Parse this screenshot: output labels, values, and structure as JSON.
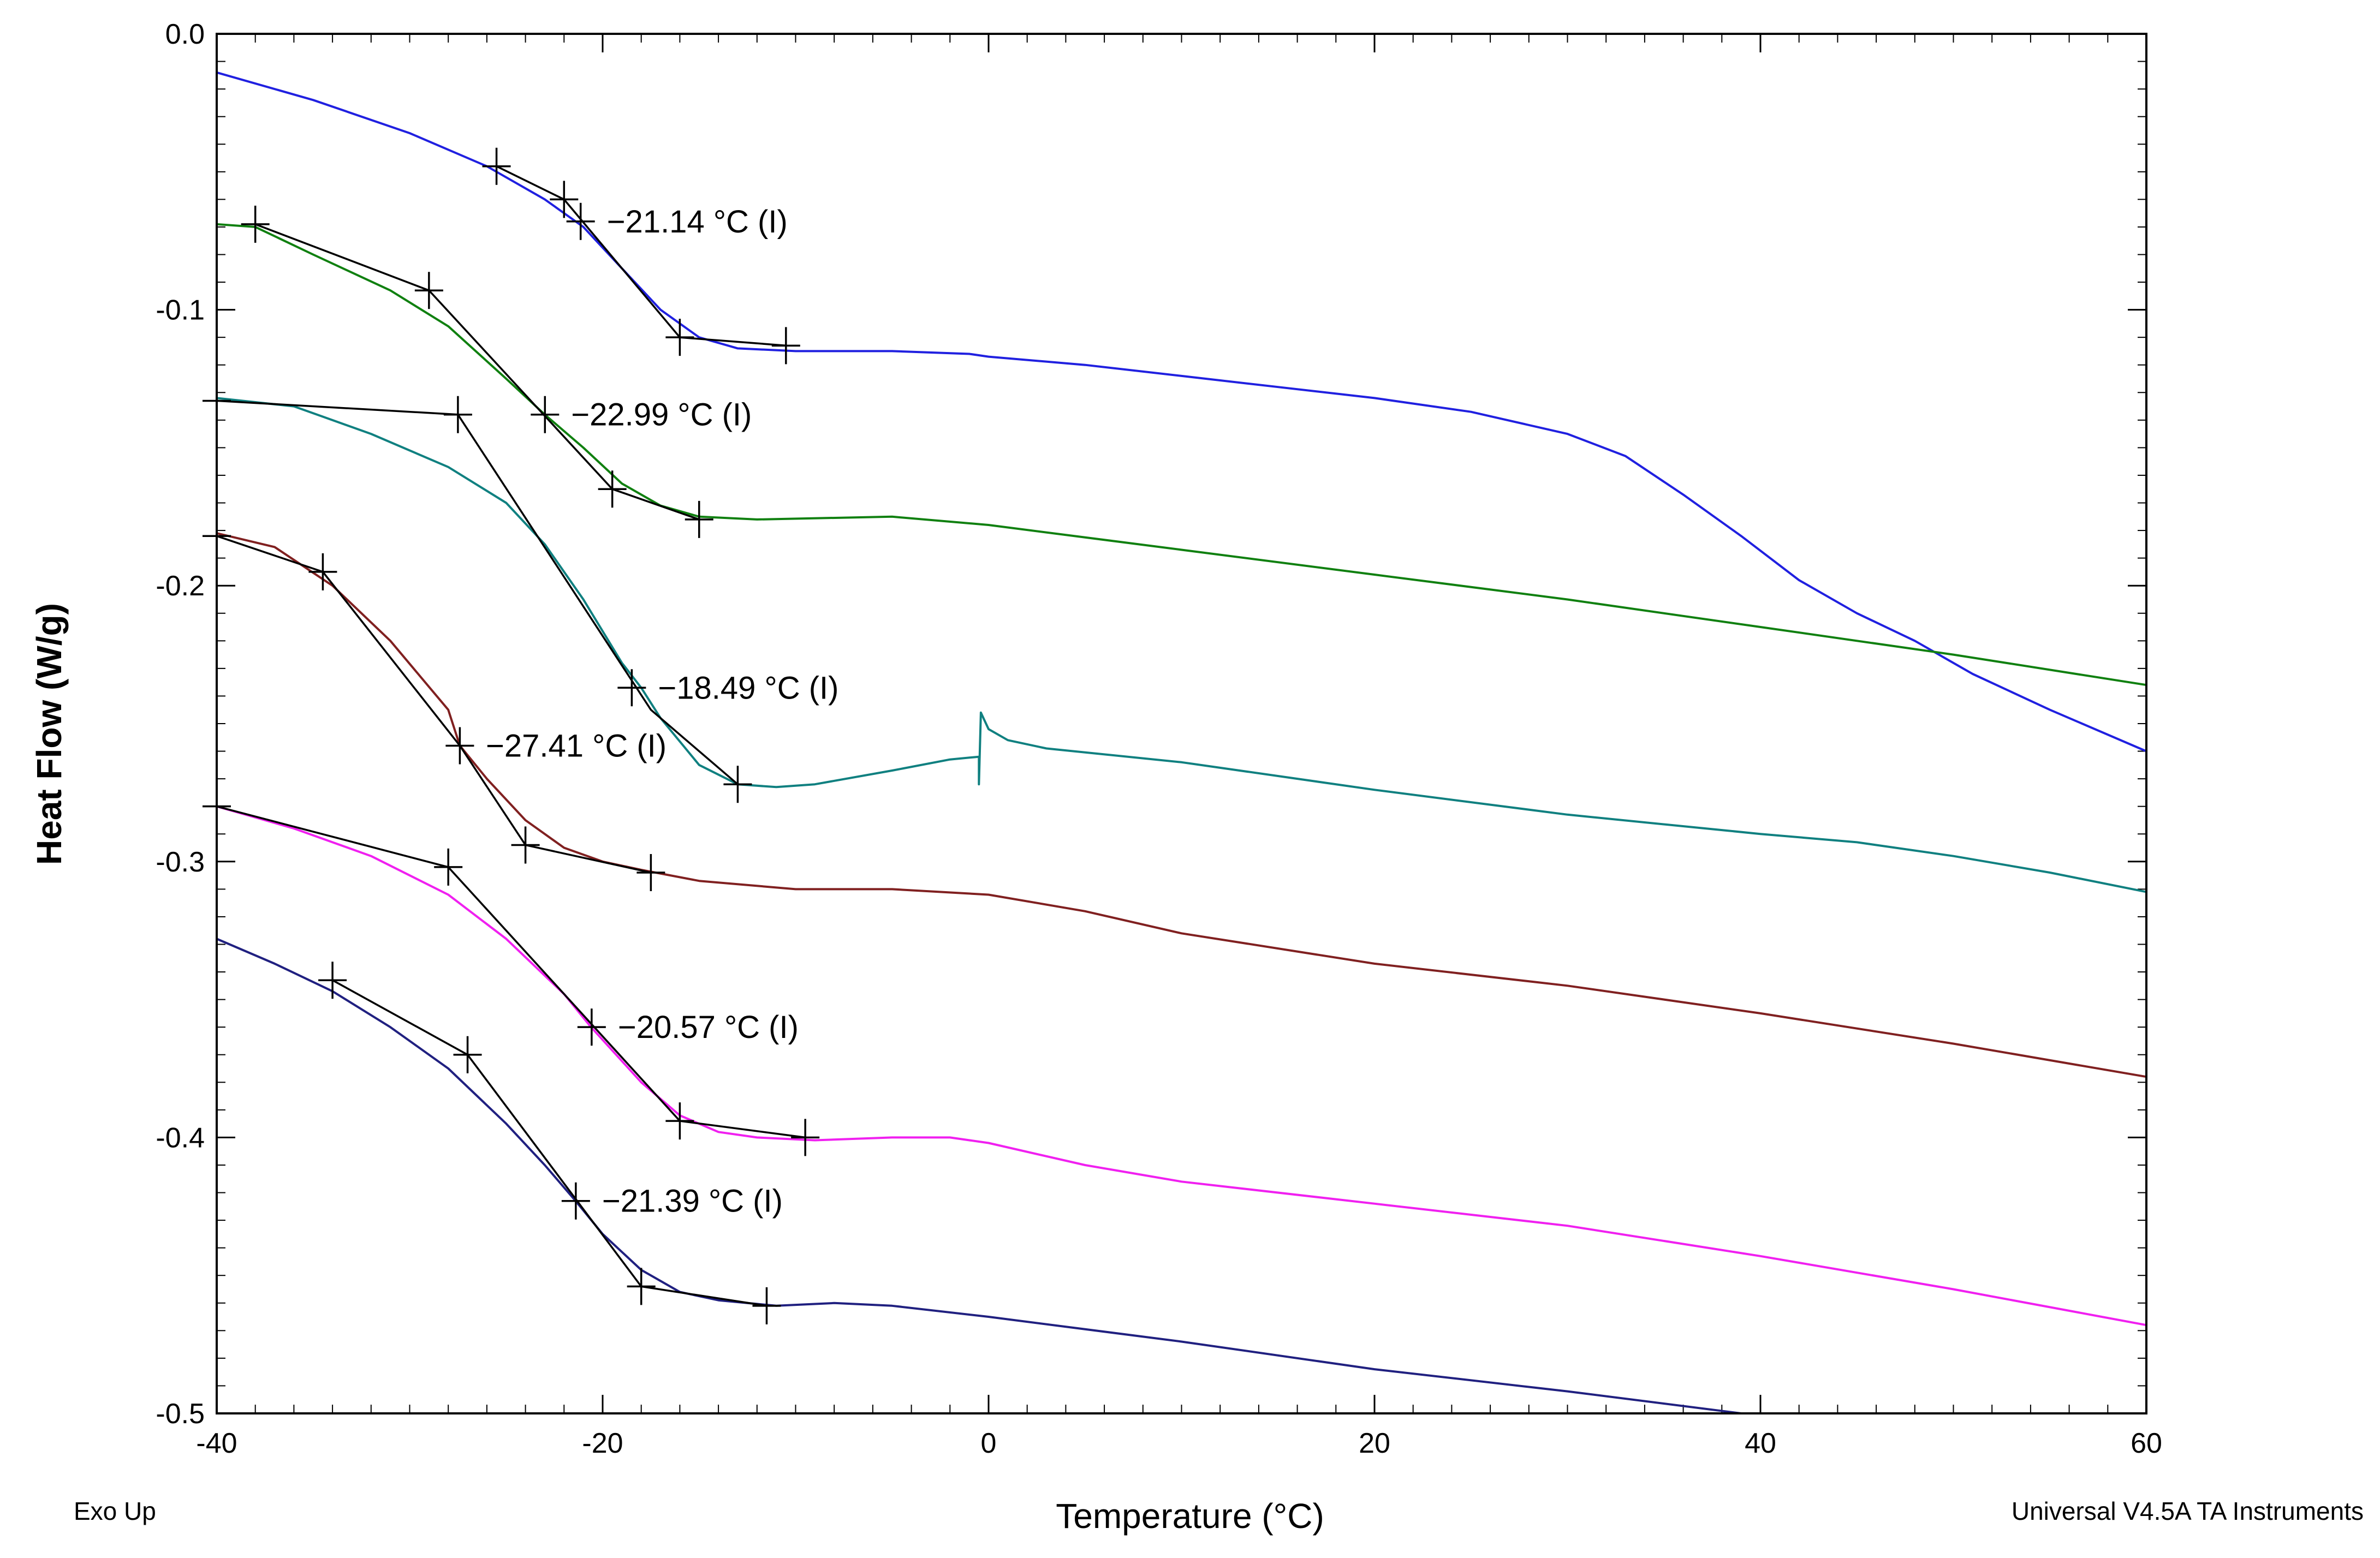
{
  "chart_data": {
    "type": "line",
    "title": "",
    "xlabel": "Temperature (°C)",
    "ylabel": "Heat Flow (W/g)",
    "xlim": [
      -40,
      60
    ],
    "ylim": [
      -0.5,
      0.0
    ],
    "x_ticks": [
      -40,
      -20,
      0,
      20,
      40,
      60
    ],
    "x_tick_labels": [
      "-40",
      "-20",
      "0",
      "20",
      "40",
      "60"
    ],
    "y_ticks": [
      0.0,
      -0.1,
      -0.2,
      -0.3,
      -0.4,
      -0.5
    ],
    "y_tick_labels": [
      "0.0",
      "-0.1",
      "-0.2",
      "-0.3",
      "-0.4",
      "-0.5"
    ],
    "grid": false,
    "footer_left": "Exo Up",
    "footer_right": "Universal V4.5A TA Instruments",
    "series": [
      {
        "name": "curve-1",
        "color": "#2020e0",
        "points": [
          [
            -40,
            -0.014
          ],
          [
            -35,
            -0.024
          ],
          [
            -30,
            -0.036
          ],
          [
            -26,
            -0.048
          ],
          [
            -23,
            -0.06
          ],
          [
            -21,
            -0.07
          ],
          [
            -19,
            -0.085
          ],
          [
            -17,
            -0.1
          ],
          [
            -15,
            -0.11
          ],
          [
            -13,
            -0.114
          ],
          [
            -10,
            -0.115
          ],
          [
            -5,
            -0.115
          ],
          [
            -1,
            -0.116
          ],
          [
            0,
            -0.117
          ],
          [
            5,
            -0.12
          ],
          [
            10,
            -0.124
          ],
          [
            15,
            -0.128
          ],
          [
            20,
            -0.132
          ],
          [
            25,
            -0.137
          ],
          [
            30,
            -0.145
          ],
          [
            33,
            -0.153
          ],
          [
            36,
            -0.167
          ],
          [
            39,
            -0.182
          ],
          [
            42,
            -0.198
          ],
          [
            45,
            -0.21
          ],
          [
            48,
            -0.22
          ],
          [
            51,
            -0.232
          ],
          [
            55,
            -0.245
          ],
          [
            60,
            -0.26
          ]
        ]
      },
      {
        "name": "curve-2",
        "color": "#108010",
        "points": [
          [
            -40,
            -0.069
          ],
          [
            -38,
            -0.07
          ],
          [
            -35,
            -0.08
          ],
          [
            -31,
            -0.093
          ],
          [
            -28,
            -0.106
          ],
          [
            -25,
            -0.125
          ],
          [
            -23,
            -0.138
          ],
          [
            -21,
            -0.15
          ],
          [
            -19,
            -0.163
          ],
          [
            -17,
            -0.171
          ],
          [
            -15,
            -0.175
          ],
          [
            -12,
            -0.176
          ],
          [
            -5,
            -0.175
          ],
          [
            0,
            -0.178
          ],
          [
            10,
            -0.187
          ],
          [
            20,
            -0.196
          ],
          [
            30,
            -0.205
          ],
          [
            40,
            -0.215
          ],
          [
            50,
            -0.225
          ],
          [
            60,
            -0.236
          ]
        ]
      },
      {
        "name": "curve-3",
        "color": "#108080",
        "points": [
          [
            -40,
            -0.132
          ],
          [
            -36,
            -0.135
          ],
          [
            -32,
            -0.145
          ],
          [
            -28,
            -0.157
          ],
          [
            -25,
            -0.17
          ],
          [
            -23,
            -0.185
          ],
          [
            -21,
            -0.205
          ],
          [
            -19,
            -0.228
          ],
          [
            -18,
            -0.237
          ],
          [
            -17,
            -0.248
          ],
          [
            -15,
            -0.265
          ],
          [
            -13,
            -0.272
          ],
          [
            -11,
            -0.273
          ],
          [
            -9,
            -0.272
          ],
          [
            -5,
            -0.267
          ],
          [
            -2,
            -0.263
          ],
          [
            -0.5,
            -0.262
          ],
          [
            -0.5,
            -0.272
          ],
          [
            -0.4,
            -0.246
          ],
          [
            0,
            -0.252
          ],
          [
            1,
            -0.256
          ],
          [
            3,
            -0.259
          ],
          [
            10,
            -0.264
          ],
          [
            20,
            -0.274
          ],
          [
            30,
            -0.283
          ],
          [
            40,
            -0.29
          ],
          [
            45,
            -0.293
          ],
          [
            50,
            -0.298
          ],
          [
            55,
            -0.304
          ],
          [
            60,
            -0.311
          ]
        ]
      },
      {
        "name": "curve-4",
        "color": "#802020",
        "points": [
          [
            -40,
            -0.181
          ],
          [
            -37,
            -0.186
          ],
          [
            -34,
            -0.2
          ],
          [
            -31,
            -0.22
          ],
          [
            -28,
            -0.245
          ],
          [
            -27.4,
            -0.258
          ],
          [
            -26,
            -0.27
          ],
          [
            -24,
            -0.285
          ],
          [
            -22,
            -0.295
          ],
          [
            -20,
            -0.3
          ],
          [
            -18,
            -0.303
          ],
          [
            -15,
            -0.307
          ],
          [
            -10,
            -0.31
          ],
          [
            -5,
            -0.31
          ],
          [
            0,
            -0.312
          ],
          [
            5,
            -0.318
          ],
          [
            10,
            -0.326
          ],
          [
            20,
            -0.337
          ],
          [
            30,
            -0.345
          ],
          [
            40,
            -0.355
          ],
          [
            50,
            -0.366
          ],
          [
            60,
            -0.378
          ]
        ]
      },
      {
        "name": "curve-5",
        "color": "#f020f0",
        "points": [
          [
            -40,
            -0.28
          ],
          [
            -36,
            -0.288
          ],
          [
            -32,
            -0.298
          ],
          [
            -28,
            -0.312
          ],
          [
            -25,
            -0.328
          ],
          [
            -22,
            -0.348
          ],
          [
            -20.6,
            -0.36
          ],
          [
            -18,
            -0.38
          ],
          [
            -16,
            -0.392
          ],
          [
            -14,
            -0.398
          ],
          [
            -12,
            -0.4
          ],
          [
            -9,
            -0.401
          ],
          [
            -5,
            -0.4
          ],
          [
            -2,
            -0.4
          ],
          [
            0,
            -0.402
          ],
          [
            5,
            -0.41
          ],
          [
            10,
            -0.416
          ],
          [
            20,
            -0.424
          ],
          [
            30,
            -0.432
          ],
          [
            40,
            -0.443
          ],
          [
            50,
            -0.455
          ],
          [
            60,
            -0.468
          ]
        ]
      },
      {
        "name": "curve-6",
        "color": "#202080",
        "points": [
          [
            -40,
            -0.328
          ],
          [
            -37,
            -0.337
          ],
          [
            -34,
            -0.347
          ],
          [
            -31,
            -0.36
          ],
          [
            -28,
            -0.375
          ],
          [
            -25,
            -0.395
          ],
          [
            -23,
            -0.41
          ],
          [
            -21.4,
            -0.423
          ],
          [
            -20,
            -0.435
          ],
          [
            -18,
            -0.448
          ],
          [
            -16,
            -0.456
          ],
          [
            -14,
            -0.459
          ],
          [
            -11,
            -0.461
          ],
          [
            -8,
            -0.46
          ],
          [
            -5,
            -0.461
          ],
          [
            0,
            -0.465
          ],
          [
            10,
            -0.474
          ],
          [
            20,
            -0.484
          ],
          [
            30,
            -0.492
          ],
          [
            39,
            -0.5
          ]
        ]
      }
    ],
    "tangent_lines": [
      {
        "points": [
          [
            -25.5,
            -0.048
          ],
          [
            -22,
            -0.06
          ],
          [
            -16,
            -0.11
          ],
          [
            -10.5,
            -0.113
          ]
        ]
      },
      {
        "points": [
          [
            -38,
            -0.069
          ],
          [
            -29,
            -0.093
          ],
          [
            -19.5,
            -0.165
          ],
          [
            -15,
            -0.176
          ]
        ]
      },
      {
        "points": [
          [
            -40,
            -0.133
          ],
          [
            -27.5,
            -0.138
          ],
          [
            -17.5,
            -0.245
          ],
          [
            -13,
            -0.272
          ]
        ]
      },
      {
        "points": [
          [
            -40,
            -0.182
          ],
          [
            -34.5,
            -0.195
          ],
          [
            -27.4,
            -0.258
          ],
          [
            -24,
            -0.294
          ],
          [
            -17.5,
            -0.304
          ]
        ]
      },
      {
        "points": [
          [
            -40,
            -0.28
          ],
          [
            -28,
            -0.302
          ],
          [
            -16,
            -0.394
          ],
          [
            -9.5,
            -0.4
          ]
        ]
      },
      {
        "points": [
          [
            -34,
            -0.343
          ],
          [
            -27,
            -0.37
          ],
          [
            -18,
            -0.454
          ],
          [
            -11.5,
            -0.461
          ]
        ]
      }
    ],
    "markers": [
      {
        "x": -25.5,
        "y": -0.048
      },
      {
        "x": -22,
        "y": -0.06
      },
      {
        "x": -21.14,
        "y": -0.068
      },
      {
        "x": -16,
        "y": -0.11
      },
      {
        "x": -10.5,
        "y": -0.113
      },
      {
        "x": -38,
        "y": -0.069
      },
      {
        "x": -29,
        "y": -0.093
      },
      {
        "x": -22.99,
        "y": -0.138
      },
      {
        "x": -19.5,
        "y": -0.165
      },
      {
        "x": -15,
        "y": -0.176
      },
      {
        "x": -40,
        "y": -0.133
      },
      {
        "x": -27.5,
        "y": -0.138
      },
      {
        "x": -18.49,
        "y": -0.237
      },
      {
        "x": -13,
        "y": -0.272
      },
      {
        "x": -40,
        "y": -0.182
      },
      {
        "x": -34.5,
        "y": -0.195
      },
      {
        "x": -27.4,
        "y": -0.258
      },
      {
        "x": -24,
        "y": -0.294
      },
      {
        "x": -17.5,
        "y": -0.304
      },
      {
        "x": -40,
        "y": -0.28
      },
      {
        "x": -28,
        "y": -0.302
      },
      {
        "x": -20.57,
        "y": -0.36
      },
      {
        "x": -16,
        "y": -0.394
      },
      {
        "x": -9.5,
        "y": -0.4
      },
      {
        "x": -34,
        "y": -0.343
      },
      {
        "x": -27,
        "y": -0.37
      },
      {
        "x": -21.39,
        "y": -0.423
      },
      {
        "x": -18,
        "y": -0.454
      },
      {
        "x": -11.5,
        "y": -0.461
      }
    ],
    "annotations": [
      {
        "text": "−21.14 °C (I)",
        "x": -21.14,
        "y": -0.068
      },
      {
        "text": "−22.99 °C (I)",
        "x": -22.99,
        "y": -0.138
      },
      {
        "text": "−18.49 °C (I)",
        "x": -18.49,
        "y": -0.237
      },
      {
        "text": "−27.41 °C (I)",
        "x": -27.41,
        "y": -0.258
      },
      {
        "text": "−20.57 °C (I)",
        "x": -20.57,
        "y": -0.36
      },
      {
        "text": "−21.39 °C (I)",
        "x": -21.39,
        "y": -0.423
      }
    ]
  }
}
